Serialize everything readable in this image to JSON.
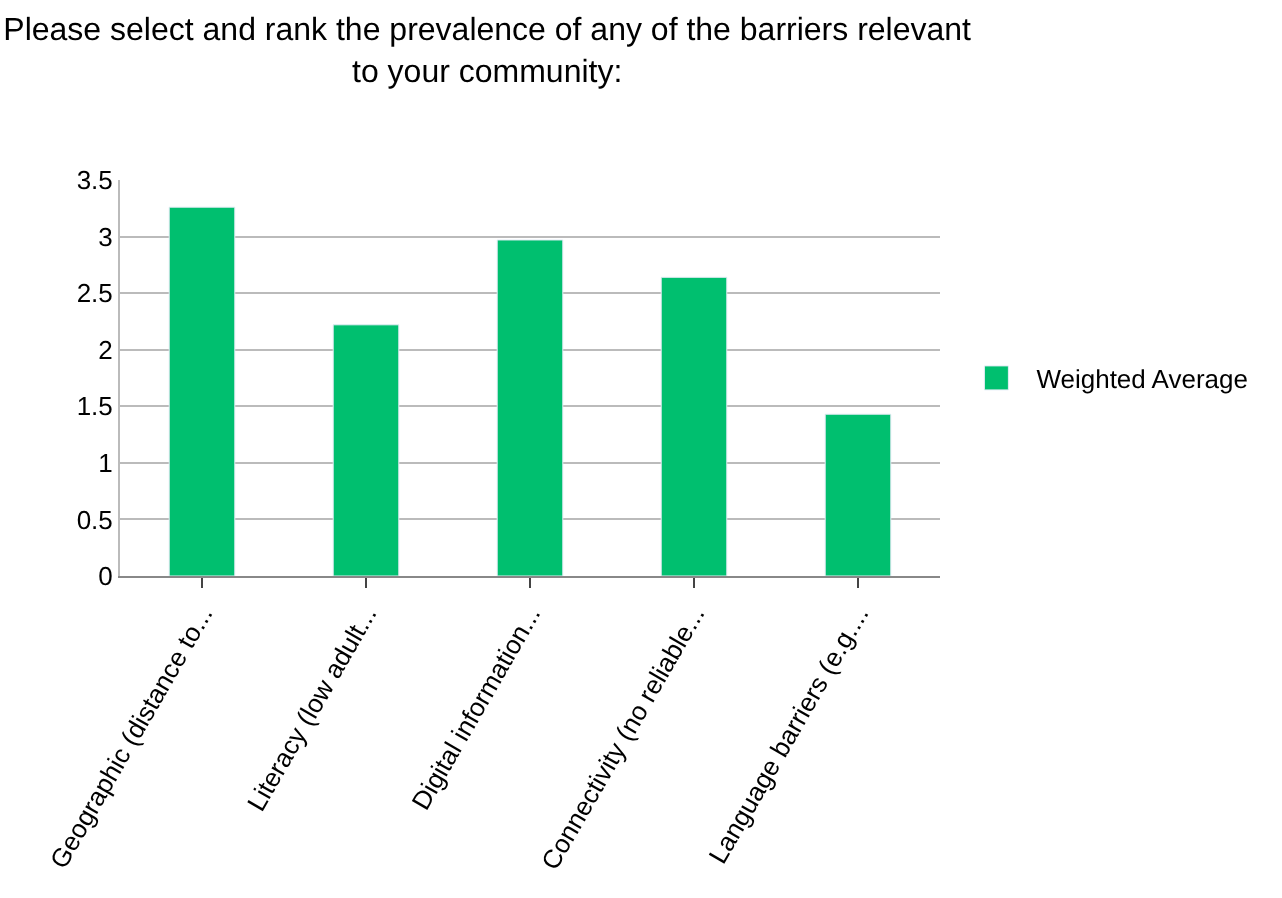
{
  "chart_data": {
    "type": "bar",
    "title": "Please select and rank the prevalence of any of the barriers relevant\nto your community:",
    "categories": [
      "Geographic (distance to...",
      "Literacy (low adult...",
      "Digital information...",
      "Connectivity (no reliable...",
      "Language barriers (e.g...."
    ],
    "series": [
      {
        "name": "Weighted Average",
        "color": "#00bf6f",
        "values": [
          3.26,
          2.22,
          2.97,
          2.64,
          1.43
        ]
      }
    ],
    "ylim": [
      0,
      3.5
    ],
    "yticks": [
      0,
      0.5,
      1,
      1.5,
      2,
      2.5,
      3,
      3.5
    ],
    "grid": "y",
    "legend": "right"
  }
}
